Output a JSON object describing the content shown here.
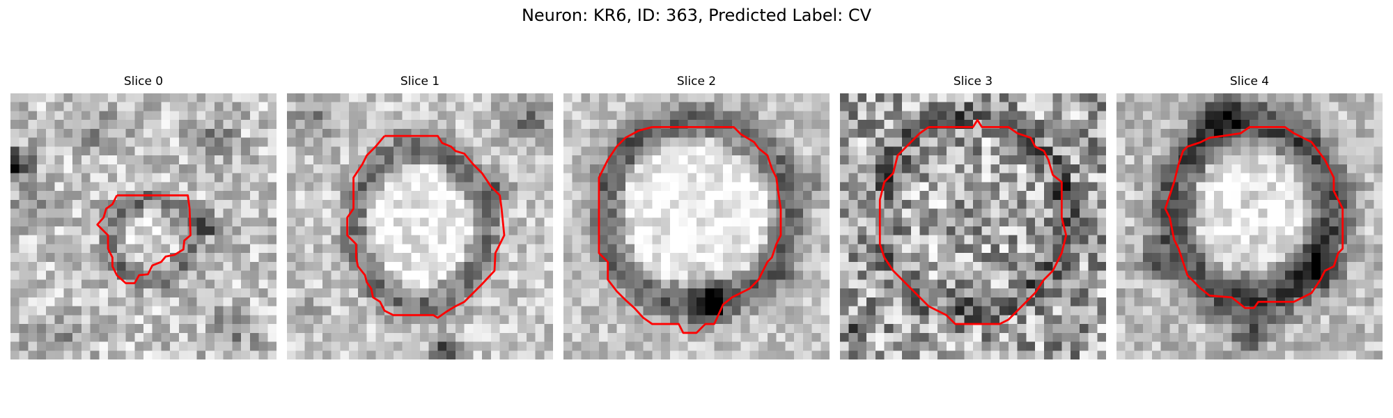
{
  "figure": {
    "title": "Neuron: KR6, ID: 363, Predicted Label: CV"
  },
  "colors": {
    "contour": "#ff0000",
    "background": "#ffffff"
  },
  "panels": [
    {
      "title": "Slice 0"
    },
    {
      "title": "Slice 1"
    },
    {
      "title": "Slice 2"
    },
    {
      "title": "Slice 3"
    },
    {
      "title": "Slice 4"
    }
  ]
}
